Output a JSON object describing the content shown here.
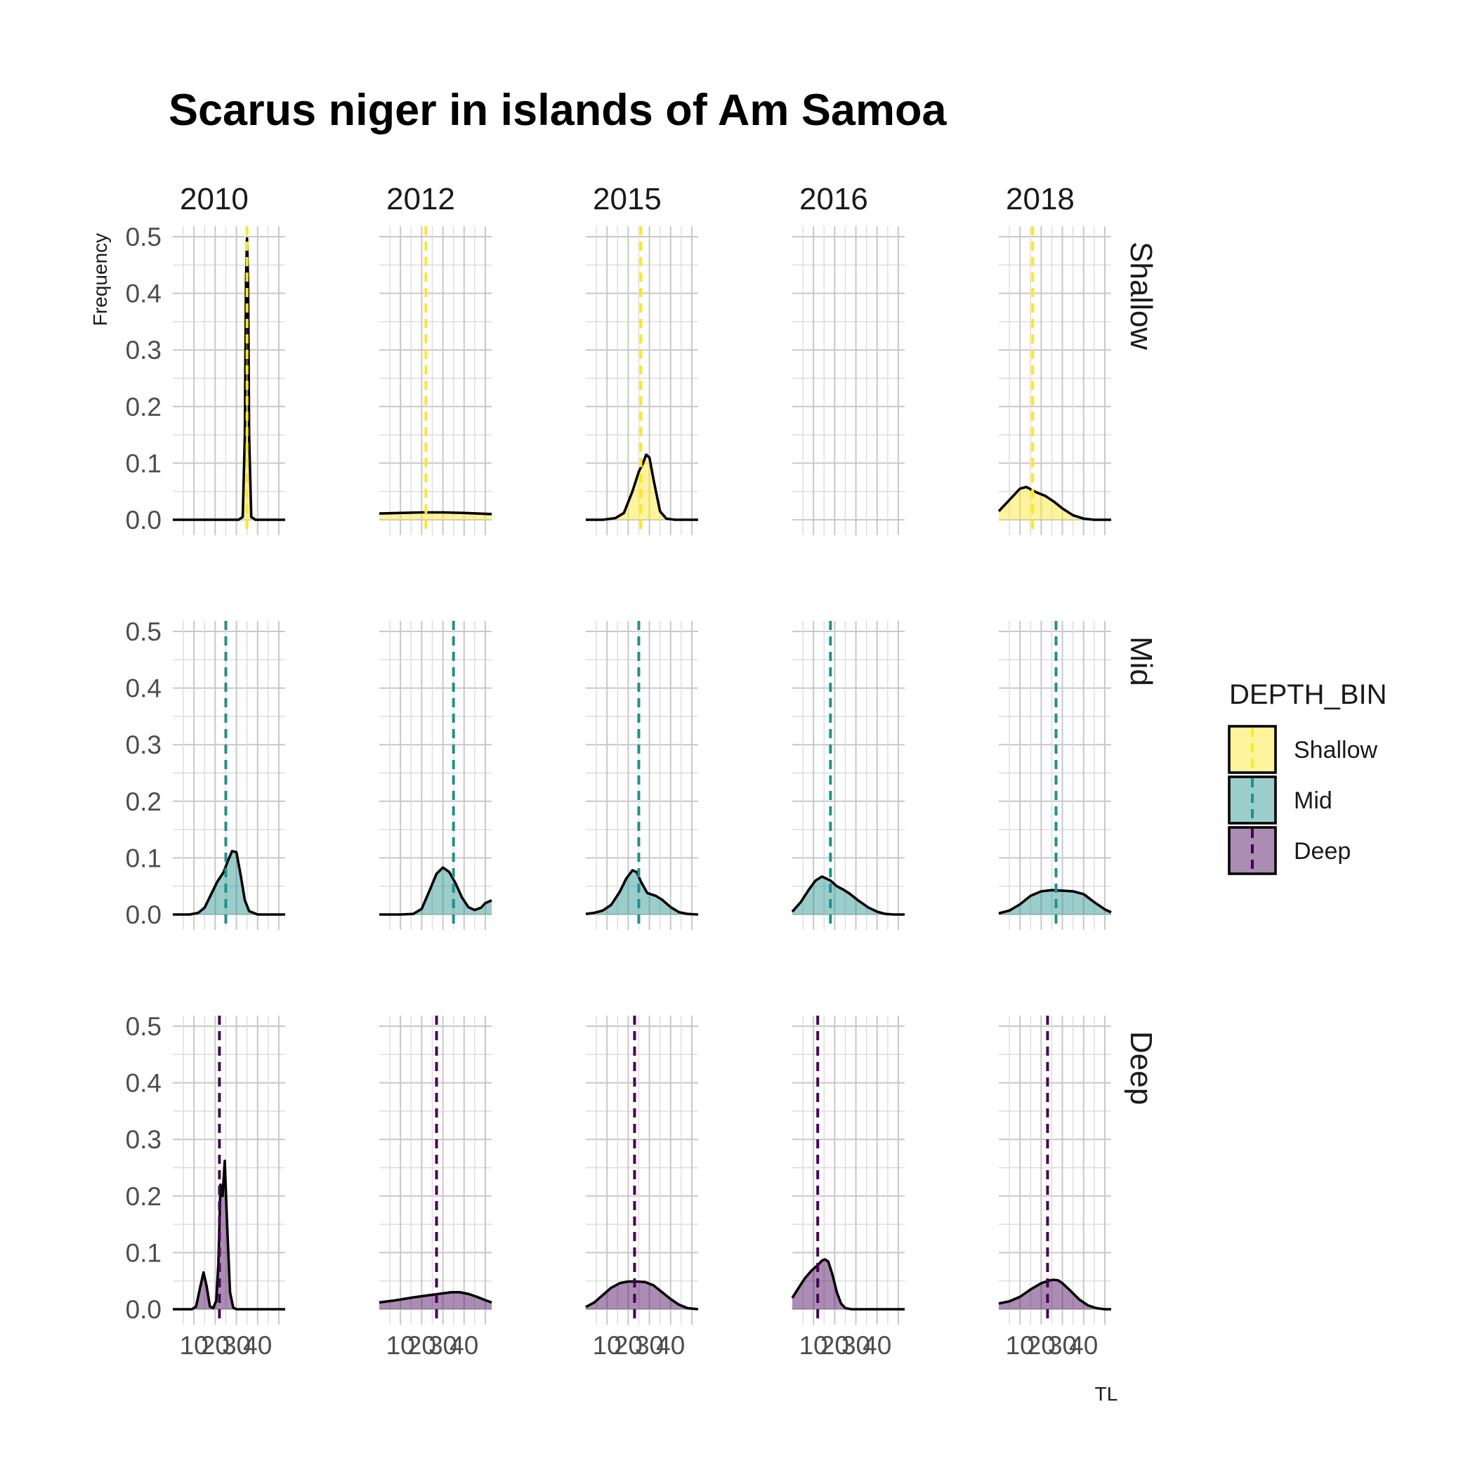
{
  "chart_data": {
    "type": "density",
    "title": "Scarus niger in islands of Am Samoa",
    "xlabel": "TL",
    "ylabel": "Frequency",
    "xlim": [
      0,
      53
    ],
    "ylim": [
      0,
      0.52
    ],
    "x_ticks": [
      10,
      20,
      30,
      40
    ],
    "x_tick_labels": [
      "10",
      "20",
      "30",
      "40"
    ],
    "y_ticks": [
      0.0,
      0.1,
      0.2,
      0.3,
      0.4,
      0.5
    ],
    "y_tick_labels": [
      "0.0",
      "0.1",
      "0.2",
      "0.3",
      "0.4",
      "0.5"
    ],
    "columns": [
      "2010",
      "2012",
      "2015",
      "2016",
      "2018"
    ],
    "rows": [
      "Shallow",
      "Mid",
      "Deep"
    ],
    "legend": {
      "title": "DEPTH_BIN",
      "position": "right",
      "items": [
        {
          "label": "Shallow",
          "color": "#FDE725"
        },
        {
          "label": "Mid",
          "color": "#21908C"
        },
        {
          "label": "Deep",
          "color": "#440154"
        }
      ]
    },
    "colors": {
      "Shallow": "#FDE725",
      "Mid": "#21908C",
      "Deep": "#440154"
    },
    "panels": [
      {
        "row": "Shallow",
        "col": "2010",
        "mean": 35,
        "curve": {
          "x": [
            0,
            31,
            33,
            34,
            34.5,
            35,
            35.5,
            36,
            37,
            39,
            53
          ],
          "y": [
            0,
            0,
            0.005,
            0.15,
            0.42,
            0.497,
            0.42,
            0.15,
            0.005,
            0,
            0
          ]
        }
      },
      {
        "row": "Shallow",
        "col": "2012",
        "mean": 22,
        "curve": {
          "x": [
            0,
            10,
            20,
            30,
            40,
            53
          ],
          "y": [
            0.011,
            0.012,
            0.013,
            0.013,
            0.012,
            0.01
          ]
        }
      },
      {
        "row": "Shallow",
        "col": "2015",
        "mean": 26,
        "curve": {
          "x": [
            0,
            8,
            14,
            18,
            22,
            25,
            27,
            28.5,
            30,
            32,
            35,
            38,
            42,
            53
          ],
          "y": [
            0,
            0,
            0.003,
            0.012,
            0.05,
            0.085,
            0.1,
            0.115,
            0.11,
            0.07,
            0.015,
            0.002,
            0,
            0
          ]
        }
      },
      {
        "row": "Shallow",
        "col": "2016",
        "mean": null,
        "curve": null
      },
      {
        "row": "Shallow",
        "col": "2018",
        "mean": 16,
        "curve": {
          "x": [
            0,
            5,
            10,
            13,
            18,
            22,
            26,
            30,
            35,
            40,
            45,
            53
          ],
          "y": [
            0.015,
            0.035,
            0.055,
            0.058,
            0.048,
            0.042,
            0.032,
            0.02,
            0.008,
            0.002,
            0,
            0
          ]
        }
      },
      {
        "row": "Mid",
        "col": "2010",
        "mean": 25,
        "curve": {
          "x": [
            0,
            8,
            12,
            15,
            18,
            21,
            24,
            26,
            28,
            30,
            32,
            34,
            36,
            40,
            53
          ],
          "y": [
            0,
            0,
            0.003,
            0.012,
            0.035,
            0.058,
            0.075,
            0.095,
            0.112,
            0.11,
            0.07,
            0.025,
            0.006,
            0,
            0
          ]
        }
      },
      {
        "row": "Mid",
        "col": "2012",
        "mean": 35,
        "curve": {
          "x": [
            0,
            10,
            16,
            20,
            24,
            27,
            30,
            33,
            36,
            39,
            42,
            45,
            48,
            50,
            53
          ],
          "y": [
            0,
            0,
            0.001,
            0.01,
            0.045,
            0.072,
            0.083,
            0.075,
            0.055,
            0.03,
            0.013,
            0.008,
            0.012,
            0.02,
            0.025
          ]
        }
      },
      {
        "row": "Mid",
        "col": "2015",
        "mean": 25,
        "curve": {
          "x": [
            0,
            4,
            8,
            12,
            16,
            19,
            22,
            24,
            26,
            29,
            33,
            36,
            40,
            44,
            48,
            53
          ],
          "y": [
            0.001,
            0.003,
            0.007,
            0.017,
            0.04,
            0.063,
            0.078,
            0.075,
            0.058,
            0.038,
            0.033,
            0.026,
            0.013,
            0.004,
            0.001,
            0
          ]
        }
      },
      {
        "row": "Mid",
        "col": "2016",
        "mean": 18,
        "curve": {
          "x": [
            0,
            4,
            8,
            11,
            14,
            18,
            21,
            24,
            27,
            31,
            36,
            40,
            44,
            48,
            53
          ],
          "y": [
            0.005,
            0.022,
            0.045,
            0.06,
            0.067,
            0.06,
            0.05,
            0.044,
            0.037,
            0.025,
            0.012,
            0.005,
            0.001,
            0,
            0
          ]
        }
      },
      {
        "row": "Mid",
        "col": "2018",
        "mean": 27,
        "curve": {
          "x": [
            0,
            5,
            10,
            15,
            20,
            25,
            30,
            35,
            40,
            45,
            50,
            53
          ],
          "y": [
            0.002,
            0.007,
            0.018,
            0.033,
            0.041,
            0.043,
            0.042,
            0.041,
            0.036,
            0.022,
            0.009,
            0.004
          ]
        }
      },
      {
        "row": "Deep",
        "col": "2010",
        "mean": 22,
        "curve": {
          "x": [
            0,
            9,
            11,
            13,
            14.5,
            16,
            17.5,
            19,
            20.5,
            21.5,
            22.5,
            23.5,
            24.5,
            25.5,
            27,
            28.5,
            30,
            53
          ],
          "y": [
            0,
            0,
            0.005,
            0.04,
            0.065,
            0.04,
            0.005,
            0.002,
            0.015,
            0.08,
            0.22,
            0.2,
            0.262,
            0.16,
            0.03,
            0.003,
            0,
            0
          ]
        }
      },
      {
        "row": "Deep",
        "col": "2012",
        "mean": 27,
        "curve": {
          "x": [
            0,
            8,
            16,
            24,
            30,
            34,
            38,
            42,
            46,
            50,
            53
          ],
          "y": [
            0.012,
            0.016,
            0.021,
            0.025,
            0.028,
            0.03,
            0.03,
            0.027,
            0.022,
            0.016,
            0.012
          ]
        }
      },
      {
        "row": "Deep",
        "col": "2015",
        "mean": 23,
        "curve": {
          "x": [
            0,
            4,
            8,
            12,
            16,
            20,
            24,
            28,
            32,
            36,
            40,
            44,
            48,
            53
          ],
          "y": [
            0.004,
            0.012,
            0.025,
            0.038,
            0.046,
            0.049,
            0.049,
            0.048,
            0.042,
            0.03,
            0.018,
            0.008,
            0.002,
            0
          ]
        }
      },
      {
        "row": "Deep",
        "col": "2016",
        "mean": 12,
        "curve": {
          "x": [
            0,
            3,
            6,
            9,
            12,
            14,
            15.5,
            17,
            19,
            21,
            23,
            25,
            28,
            31,
            35,
            53
          ],
          "y": [
            0.02,
            0.038,
            0.055,
            0.068,
            0.078,
            0.086,
            0.088,
            0.084,
            0.06,
            0.03,
            0.01,
            0.002,
            0,
            0,
            0,
            0
          ]
        }
      },
      {
        "row": "Deep",
        "col": "2018",
        "mean": 23,
        "curve": {
          "x": [
            0,
            5,
            10,
            15,
            20,
            24,
            26,
            28,
            30,
            34,
            38,
            42,
            46,
            50,
            53
          ],
          "y": [
            0.01,
            0.014,
            0.022,
            0.035,
            0.046,
            0.051,
            0.052,
            0.051,
            0.046,
            0.032,
            0.017,
            0.007,
            0.002,
            0,
            0
          ]
        }
      }
    ]
  }
}
